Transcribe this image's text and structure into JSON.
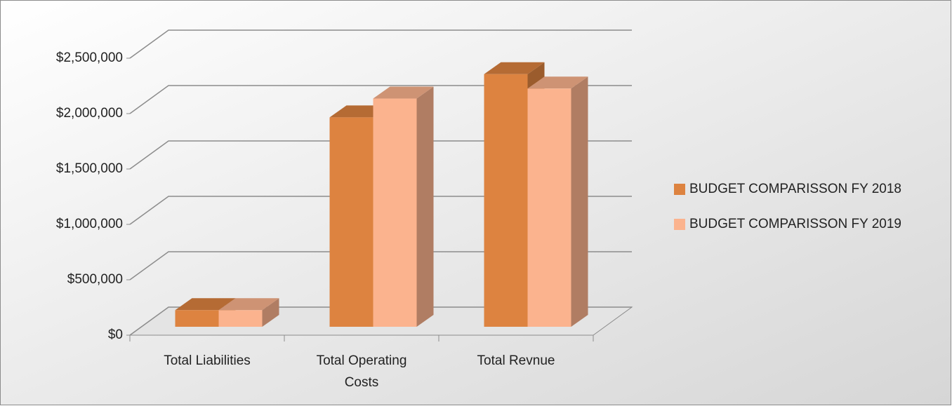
{
  "chart_data": {
    "type": "bar3d",
    "categories": [
      "Total Liabilities",
      "Total Operating Costs",
      "Total Revnue"
    ],
    "series": [
      {
        "name": "BUDGET COMPARISSON FY 2018",
        "color": "#dd8340",
        "values": [
          150000,
          1890000,
          2280000
        ]
      },
      {
        "name": "BUDGET COMPARISSON FY 2019",
        "color": "#fbb38e",
        "values": [
          150000,
          2060000,
          2150000
        ]
      }
    ],
    "ylim": [
      0,
      2500000
    ],
    "yticks": [
      {
        "value": 0,
        "label": "$0"
      },
      {
        "value": 500000,
        "label": "$500,000"
      },
      {
        "value": 1000000,
        "label": "$1,000,000"
      },
      {
        "value": 1500000,
        "label": "$1,500,000"
      },
      {
        "value": 2000000,
        "label": "$2,000,000"
      },
      {
        "value": 2500000,
        "label": "$2,500,000"
      }
    ],
    "grid": true,
    "legend": "right"
  }
}
